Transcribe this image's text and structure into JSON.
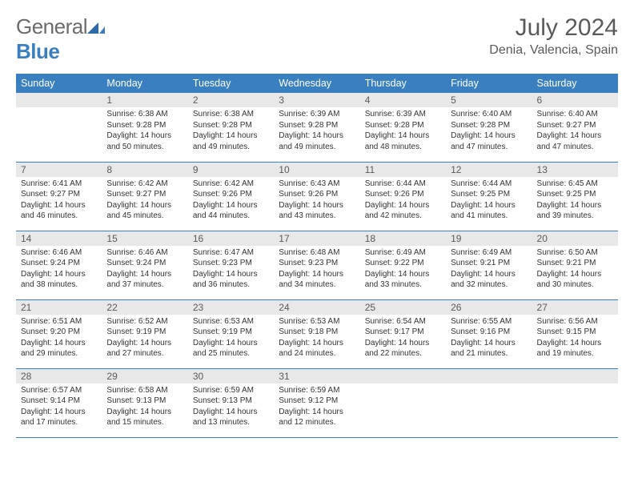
{
  "brand": {
    "name_part1": "General",
    "name_part2": "Blue"
  },
  "title": "July 2024",
  "location": "Denia, Valencia, Spain",
  "colors": {
    "header_bg": "#3a7fbf",
    "header_text": "#ffffff",
    "daynum_bg": "#e8e8e8",
    "border": "#3a7fbf",
    "text": "#333333",
    "title_text": "#5a5a5a"
  },
  "weekdays": [
    "Sunday",
    "Monday",
    "Tuesday",
    "Wednesday",
    "Thursday",
    "Friday",
    "Saturday"
  ],
  "start_blank": 1,
  "days": [
    {
      "n": 1,
      "sunrise": "6:38 AM",
      "sunset": "9:28 PM",
      "daylight": "14 hours and 50 minutes."
    },
    {
      "n": 2,
      "sunrise": "6:38 AM",
      "sunset": "9:28 PM",
      "daylight": "14 hours and 49 minutes."
    },
    {
      "n": 3,
      "sunrise": "6:39 AM",
      "sunset": "9:28 PM",
      "daylight": "14 hours and 49 minutes."
    },
    {
      "n": 4,
      "sunrise": "6:39 AM",
      "sunset": "9:28 PM",
      "daylight": "14 hours and 48 minutes."
    },
    {
      "n": 5,
      "sunrise": "6:40 AM",
      "sunset": "9:28 PM",
      "daylight": "14 hours and 47 minutes."
    },
    {
      "n": 6,
      "sunrise": "6:40 AM",
      "sunset": "9:27 PM",
      "daylight": "14 hours and 47 minutes."
    },
    {
      "n": 7,
      "sunrise": "6:41 AM",
      "sunset": "9:27 PM",
      "daylight": "14 hours and 46 minutes."
    },
    {
      "n": 8,
      "sunrise": "6:42 AM",
      "sunset": "9:27 PM",
      "daylight": "14 hours and 45 minutes."
    },
    {
      "n": 9,
      "sunrise": "6:42 AM",
      "sunset": "9:26 PM",
      "daylight": "14 hours and 44 minutes."
    },
    {
      "n": 10,
      "sunrise": "6:43 AM",
      "sunset": "9:26 PM",
      "daylight": "14 hours and 43 minutes."
    },
    {
      "n": 11,
      "sunrise": "6:44 AM",
      "sunset": "9:26 PM",
      "daylight": "14 hours and 42 minutes."
    },
    {
      "n": 12,
      "sunrise": "6:44 AM",
      "sunset": "9:25 PM",
      "daylight": "14 hours and 41 minutes."
    },
    {
      "n": 13,
      "sunrise": "6:45 AM",
      "sunset": "9:25 PM",
      "daylight": "14 hours and 39 minutes."
    },
    {
      "n": 14,
      "sunrise": "6:46 AM",
      "sunset": "9:24 PM",
      "daylight": "14 hours and 38 minutes."
    },
    {
      "n": 15,
      "sunrise": "6:46 AM",
      "sunset": "9:24 PM",
      "daylight": "14 hours and 37 minutes."
    },
    {
      "n": 16,
      "sunrise": "6:47 AM",
      "sunset": "9:23 PM",
      "daylight": "14 hours and 36 minutes."
    },
    {
      "n": 17,
      "sunrise": "6:48 AM",
      "sunset": "9:23 PM",
      "daylight": "14 hours and 34 minutes."
    },
    {
      "n": 18,
      "sunrise": "6:49 AM",
      "sunset": "9:22 PM",
      "daylight": "14 hours and 33 minutes."
    },
    {
      "n": 19,
      "sunrise": "6:49 AM",
      "sunset": "9:21 PM",
      "daylight": "14 hours and 32 minutes."
    },
    {
      "n": 20,
      "sunrise": "6:50 AM",
      "sunset": "9:21 PM",
      "daylight": "14 hours and 30 minutes."
    },
    {
      "n": 21,
      "sunrise": "6:51 AM",
      "sunset": "9:20 PM",
      "daylight": "14 hours and 29 minutes."
    },
    {
      "n": 22,
      "sunrise": "6:52 AM",
      "sunset": "9:19 PM",
      "daylight": "14 hours and 27 minutes."
    },
    {
      "n": 23,
      "sunrise": "6:53 AM",
      "sunset": "9:19 PM",
      "daylight": "14 hours and 25 minutes."
    },
    {
      "n": 24,
      "sunrise": "6:53 AM",
      "sunset": "9:18 PM",
      "daylight": "14 hours and 24 minutes."
    },
    {
      "n": 25,
      "sunrise": "6:54 AM",
      "sunset": "9:17 PM",
      "daylight": "14 hours and 22 minutes."
    },
    {
      "n": 26,
      "sunrise": "6:55 AM",
      "sunset": "9:16 PM",
      "daylight": "14 hours and 21 minutes."
    },
    {
      "n": 27,
      "sunrise": "6:56 AM",
      "sunset": "9:15 PM",
      "daylight": "14 hours and 19 minutes."
    },
    {
      "n": 28,
      "sunrise": "6:57 AM",
      "sunset": "9:14 PM",
      "daylight": "14 hours and 17 minutes."
    },
    {
      "n": 29,
      "sunrise": "6:58 AM",
      "sunset": "9:13 PM",
      "daylight": "14 hours and 15 minutes."
    },
    {
      "n": 30,
      "sunrise": "6:59 AM",
      "sunset": "9:13 PM",
      "daylight": "14 hours and 13 minutes."
    },
    {
      "n": 31,
      "sunrise": "6:59 AM",
      "sunset": "9:12 PM",
      "daylight": "14 hours and 12 minutes."
    }
  ],
  "labels": {
    "sunrise": "Sunrise:",
    "sunset": "Sunset:",
    "daylight": "Daylight:"
  }
}
